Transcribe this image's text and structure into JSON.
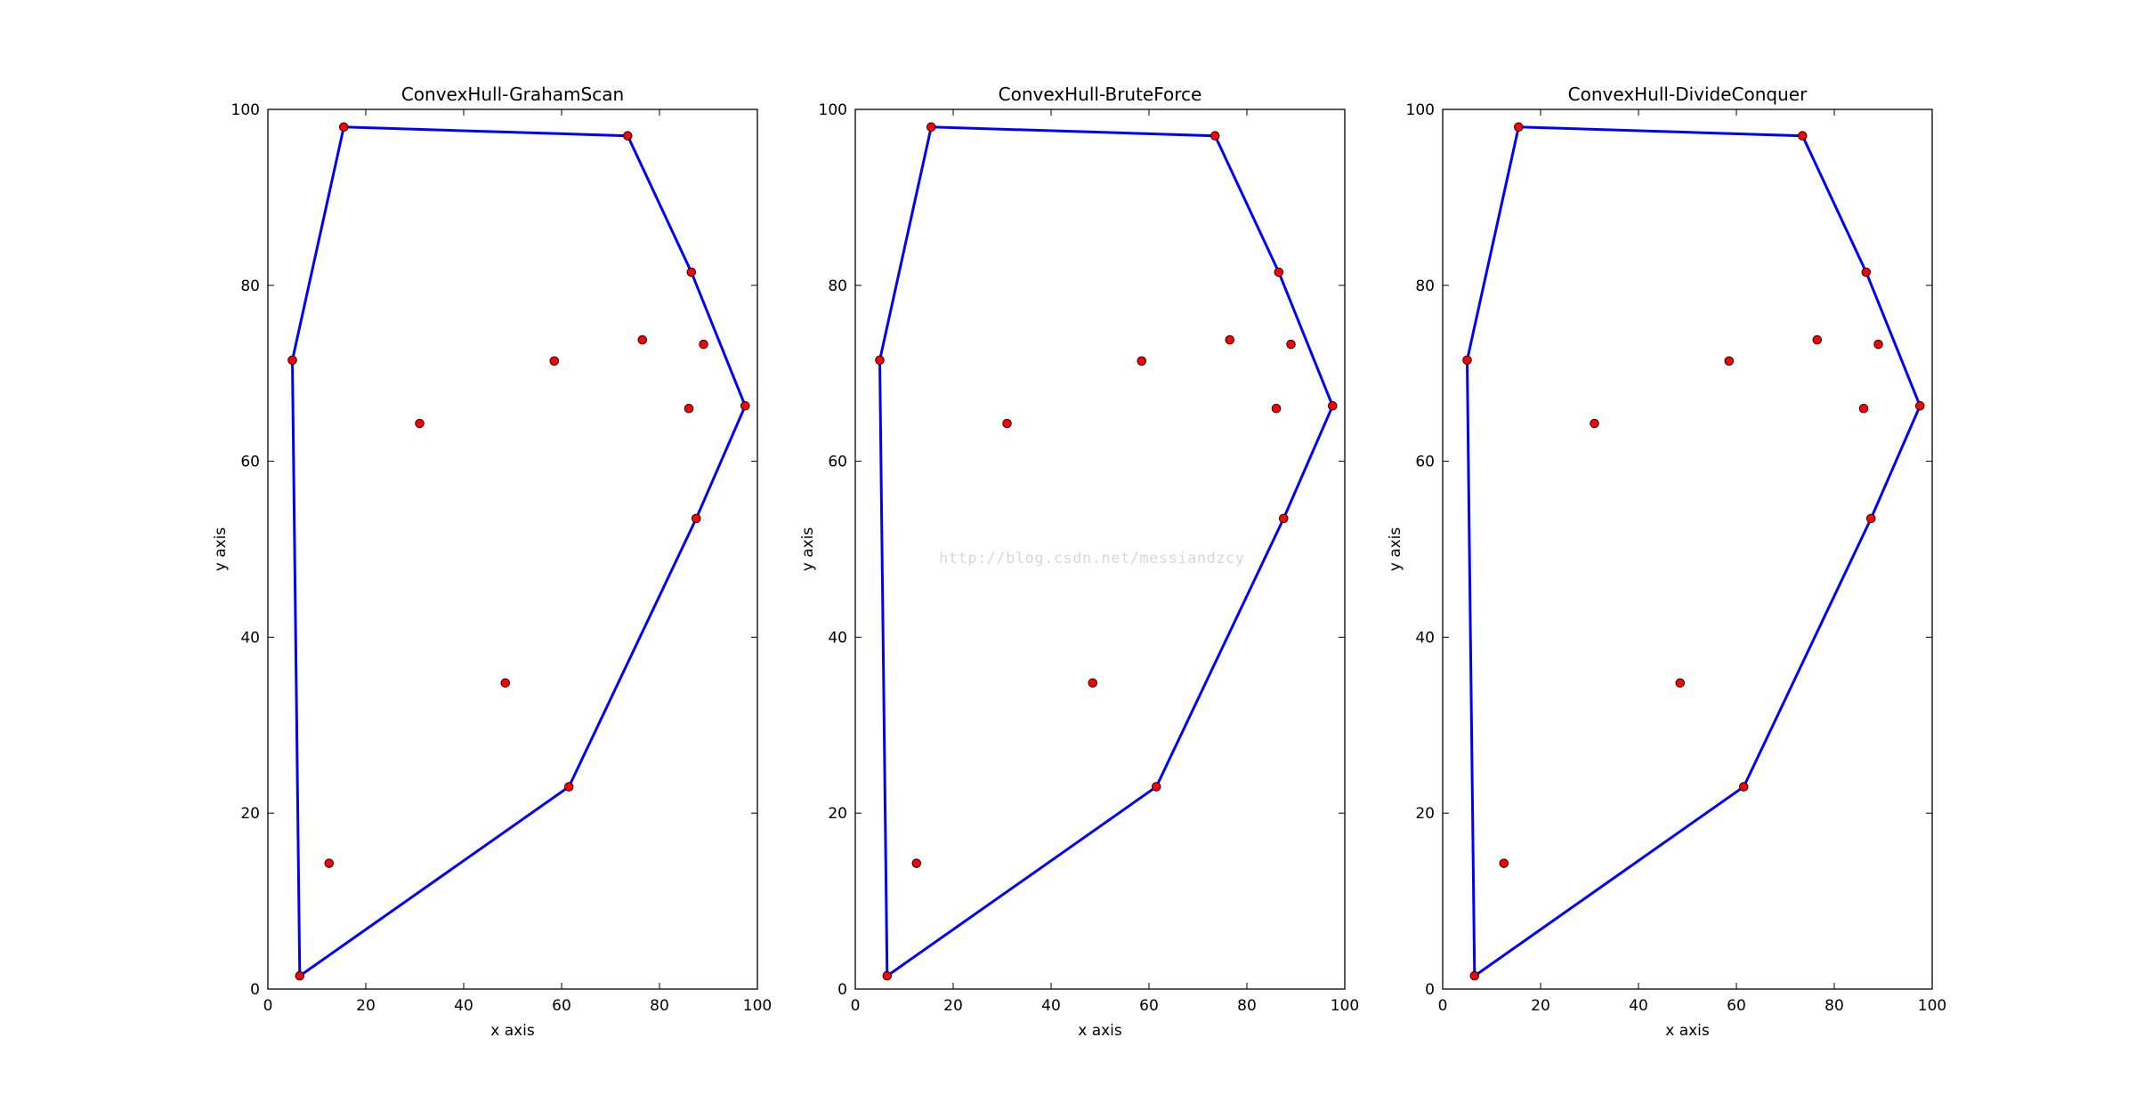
{
  "watermark": "http://blog.csdn.net/messiandzcy",
  "colors": {
    "hull": "#0000ff",
    "point_fill": "#ff0000",
    "point_edge": "#000000",
    "frame": "#000000"
  },
  "chart_data": [
    {
      "type": "scatter",
      "title": "ConvexHull-GrahamScan",
      "xlabel": "x axis",
      "ylabel": "y axis",
      "xlim": [
        0,
        100
      ],
      "ylim": [
        0,
        100
      ],
      "xticks": [
        0,
        20,
        40,
        60,
        80,
        100
      ],
      "yticks": [
        0,
        20,
        40,
        60,
        80,
        100
      ],
      "grid": false,
      "points": [
        [
          5,
          71.5
        ],
        [
          15.5,
          98
        ],
        [
          73.5,
          97
        ],
        [
          86.5,
          81.5
        ],
        [
          97.5,
          66.3
        ],
        [
          87.5,
          53.5
        ],
        [
          61.5,
          23
        ],
        [
          6.5,
          1.5
        ],
        [
          12.5,
          14.3
        ],
        [
          31,
          64.3
        ],
        [
          48.5,
          34.8
        ],
        [
          58.5,
          71.4
        ],
        [
          76.5,
          73.8
        ],
        [
          89,
          73.3
        ],
        [
          86,
          66
        ]
      ],
      "hull": [
        [
          5,
          71.5
        ],
        [
          15.5,
          98
        ],
        [
          73.5,
          97
        ],
        [
          86.5,
          81.5
        ],
        [
          97.5,
          66.3
        ],
        [
          87.5,
          53.5
        ],
        [
          61.5,
          23
        ],
        [
          6.5,
          1.5
        ],
        [
          5,
          71.5
        ]
      ]
    },
    {
      "type": "scatter",
      "title": "ConvexHull-BruteForce",
      "xlabel": "x axis",
      "ylabel": "y axis",
      "xlim": [
        0,
        100
      ],
      "ylim": [
        0,
        100
      ],
      "xticks": [
        0,
        20,
        40,
        60,
        80,
        100
      ],
      "yticks": [
        0,
        20,
        40,
        60,
        80,
        100
      ],
      "grid": false,
      "points": [
        [
          5,
          71.5
        ],
        [
          15.5,
          98
        ],
        [
          73.5,
          97
        ],
        [
          86.5,
          81.5
        ],
        [
          97.5,
          66.3
        ],
        [
          87.5,
          53.5
        ],
        [
          61.5,
          23
        ],
        [
          6.5,
          1.5
        ],
        [
          12.5,
          14.3
        ],
        [
          31,
          64.3
        ],
        [
          48.5,
          34.8
        ],
        [
          58.5,
          71.4
        ],
        [
          76.5,
          73.8
        ],
        [
          89,
          73.3
        ],
        [
          86,
          66
        ]
      ],
      "hull": [
        [
          5,
          71.5
        ],
        [
          15.5,
          98
        ],
        [
          73.5,
          97
        ],
        [
          86.5,
          81.5
        ],
        [
          97.5,
          66.3
        ],
        [
          87.5,
          53.5
        ],
        [
          61.5,
          23
        ],
        [
          6.5,
          1.5
        ],
        [
          5,
          71.5
        ]
      ]
    },
    {
      "type": "scatter",
      "title": "ConvexHull-DivideConquer",
      "xlabel": "x axis",
      "ylabel": "y axis",
      "xlim": [
        0,
        100
      ],
      "ylim": [
        0,
        100
      ],
      "xticks": [
        0,
        20,
        40,
        60,
        80,
        100
      ],
      "yticks": [
        0,
        20,
        40,
        60,
        80,
        100
      ],
      "grid": false,
      "points": [
        [
          5,
          71.5
        ],
        [
          15.5,
          98
        ],
        [
          73.5,
          97
        ],
        [
          86.5,
          81.5
        ],
        [
          97.5,
          66.3
        ],
        [
          87.5,
          53.5
        ],
        [
          61.5,
          23
        ],
        [
          6.5,
          1.5
        ],
        [
          12.5,
          14.3
        ],
        [
          31,
          64.3
        ],
        [
          48.5,
          34.8
        ],
        [
          58.5,
          71.4
        ],
        [
          76.5,
          73.8
        ],
        [
          89,
          73.3
        ],
        [
          86,
          66
        ]
      ],
      "hull": [
        [
          5,
          71.5
        ],
        [
          15.5,
          98
        ],
        [
          73.5,
          97
        ],
        [
          86.5,
          81.5
        ],
        [
          97.5,
          66.3
        ],
        [
          87.5,
          53.5
        ],
        [
          61.5,
          23
        ],
        [
          6.5,
          1.5
        ],
        [
          5,
          71.5
        ]
      ]
    }
  ]
}
